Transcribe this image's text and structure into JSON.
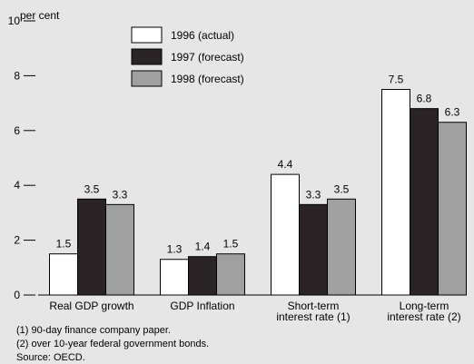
{
  "chart_data": {
    "type": "bar",
    "y_label": "per cent",
    "categories": [
      [
        "Real GDP growth"
      ],
      [
        "GDP Inflation"
      ],
      [
        "Short-term",
        "interest rate (1)"
      ],
      [
        "Long-term",
        "interest rate (2)"
      ]
    ],
    "series": [
      {
        "name": "1996 (actual)",
        "color": "#ffffff",
        "values": [
          1.5,
          1.3,
          4.4,
          7.5
        ]
      },
      {
        "name": "1997 (forecast)",
        "color": "#2a2426",
        "values": [
          3.5,
          1.4,
          3.3,
          6.8
        ]
      },
      {
        "name": "1998 (forecast)",
        "color": "#a0a0a0",
        "values": [
          3.3,
          1.5,
          3.5,
          6.3
        ]
      }
    ],
    "ylim": [
      0,
      10
    ],
    "yticks": [
      0,
      2,
      4,
      6,
      8,
      10
    ],
    "notes": [
      "(1) 90-day finance company paper.",
      "(2) over 10-year federal government bonds.",
      "Source: OECD."
    ]
  }
}
